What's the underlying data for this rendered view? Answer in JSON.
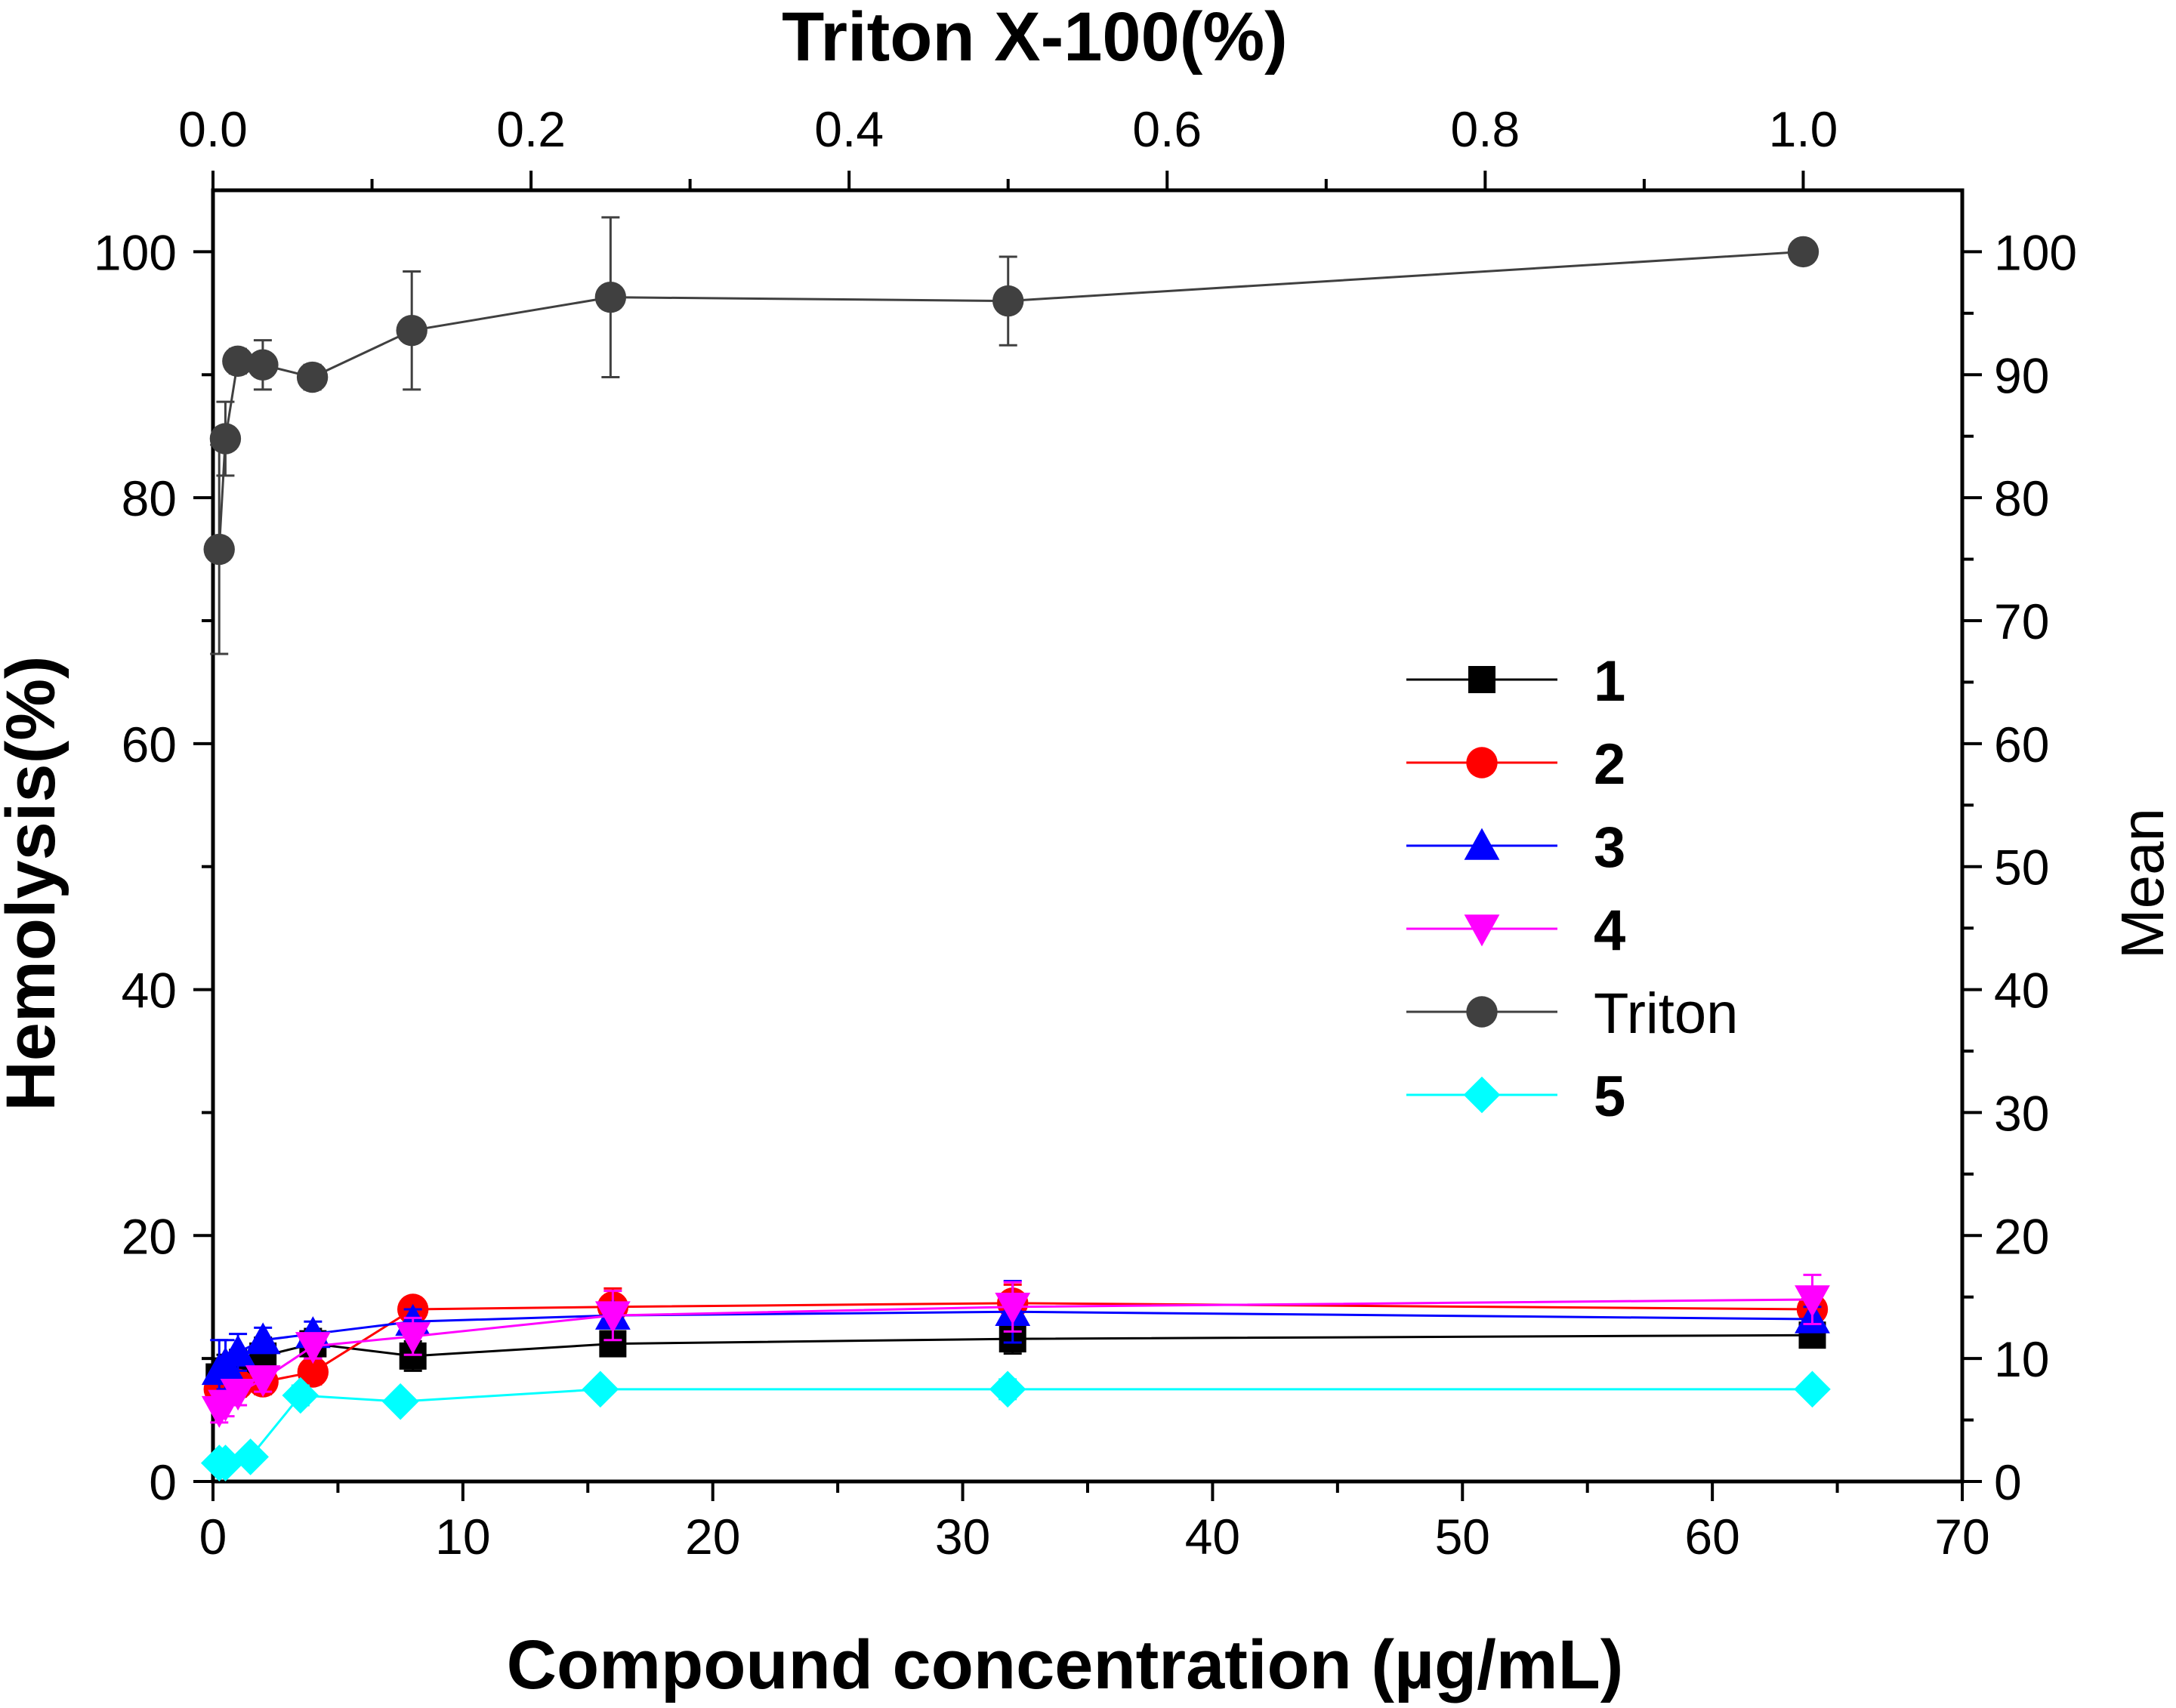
{
  "chart_data": {
    "type": "line",
    "top_axis_title": "Triton X-100(%)",
    "xlabel": "Compound concentration (µg/mL)",
    "ylabel": "Hemolysis(%)",
    "y2label": "Mean",
    "xlim": [
      0,
      70
    ],
    "ylim": [
      0,
      105
    ],
    "top_xlim": [
      0,
      1.1
    ],
    "x_ticks": [
      0,
      10,
      20,
      30,
      40,
      50,
      60,
      70
    ],
    "x_tick_labels": [
      "0",
      "10",
      "20",
      "30",
      "40",
      "50",
      "60",
      "70"
    ],
    "top_ticks": [
      0,
      0.2,
      0.4,
      0.6,
      0.8,
      1.0
    ],
    "top_tick_labels": [
      "0.0",
      "0.2",
      "0.4",
      "0.6",
      "0.8",
      "1.0"
    ],
    "y_ticks": [
      0,
      20,
      40,
      60,
      80,
      100
    ],
    "y_tick_labels": [
      "0",
      "20",
      "40",
      "60",
      "80",
      "100"
    ],
    "y2_ticks": [
      0,
      10,
      20,
      30,
      40,
      50,
      60,
      70,
      80,
      90,
      100
    ],
    "y2_tick_labels": [
      "0",
      "10",
      "20",
      "30",
      "40",
      "50",
      "60",
      "70",
      "80",
      "90",
      "100"
    ],
    "legend_position": "right-middle",
    "series": [
      {
        "name": "1",
        "color": "#000000",
        "marker": "square",
        "bold": true,
        "axis": "bottom",
        "x": [
          0.25,
          0.5,
          1,
          2,
          4,
          8,
          16,
          32,
          64
        ],
        "y": [
          8.5,
          8.8,
          9.2,
          10.2,
          11.2,
          10.2,
          11.2,
          11.6,
          11.9
        ],
        "err": [
          1.5,
          1.5,
          1.5,
          1.5,
          1.2,
          1.2,
          1.0,
          1.2,
          0.8
        ]
      },
      {
        "name": "2",
        "color": "#ff0000",
        "marker": "circle",
        "bold": true,
        "axis": "bottom",
        "x": [
          0.25,
          0.5,
          1,
          2,
          4,
          8,
          16,
          32,
          64
        ],
        "y": [
          7.5,
          7.7,
          7.9,
          8.1,
          8.9,
          14.0,
          14.2,
          14.5,
          14.0
        ],
        "err": [
          1.0,
          1.0,
          1.0,
          1.0,
          1.0,
          0.8,
          1.5,
          1.5,
          1.0
        ]
      },
      {
        "name": "3",
        "color": "#0000ff",
        "marker": "triangle-up",
        "bold": true,
        "axis": "bottom",
        "x": [
          0.25,
          0.5,
          1,
          2,
          4,
          8,
          16,
          32,
          64
        ],
        "y": [
          9.0,
          9.5,
          10.5,
          11.5,
          12.0,
          13.0,
          13.5,
          13.8,
          13.2
        ],
        "err": [
          2.5,
          2.0,
          1.5,
          1.0,
          1.0,
          1.0,
          1.0,
          2.5,
          1.0
        ]
      },
      {
        "name": "4",
        "color": "#ff00ff",
        "marker": "triangle-down",
        "bold": true,
        "axis": "bottom",
        "x": [
          0.25,
          0.5,
          1,
          2,
          4,
          8,
          16,
          32,
          64
        ],
        "y": [
          5.8,
          6.3,
          7.2,
          8.3,
          11.0,
          11.8,
          13.5,
          14.2,
          14.8
        ],
        "err": [
          1.0,
          1.0,
          1.0,
          1.0,
          1.0,
          1.5,
          2.0,
          2.0,
          2.0
        ]
      },
      {
        "name": "Triton",
        "color": "#404040",
        "marker": "circle",
        "bold": false,
        "axis": "top",
        "x": [
          0.0039,
          0.0078,
          0.0156,
          0.0313,
          0.0625,
          0.125,
          0.25,
          0.5,
          1.0
        ],
        "y": [
          75.8,
          84.8,
          91.1,
          90.8,
          89.8,
          93.6,
          96.3,
          96.0,
          100.0
        ],
        "err": [
          8.5,
          3.0,
          1.0,
          2.0,
          1.0,
          4.8,
          6.5,
          3.6,
          0
        ]
      },
      {
        "name": "5",
        "color": "#00ffff",
        "marker": "diamond",
        "bold": true,
        "axis": "bottom",
        "x": [
          0.25,
          0.5,
          1.5,
          3.5,
          7.5,
          15.5,
          31.8,
          64
        ],
        "y": [
          1.5,
          1.5,
          2.0,
          7.0,
          6.5,
          7.5,
          7.5,
          7.5
        ],
        "err": [
          0.5,
          0.5,
          0.5,
          0.8,
          0.6,
          0.6,
          0.8,
          0.5
        ]
      }
    ]
  }
}
